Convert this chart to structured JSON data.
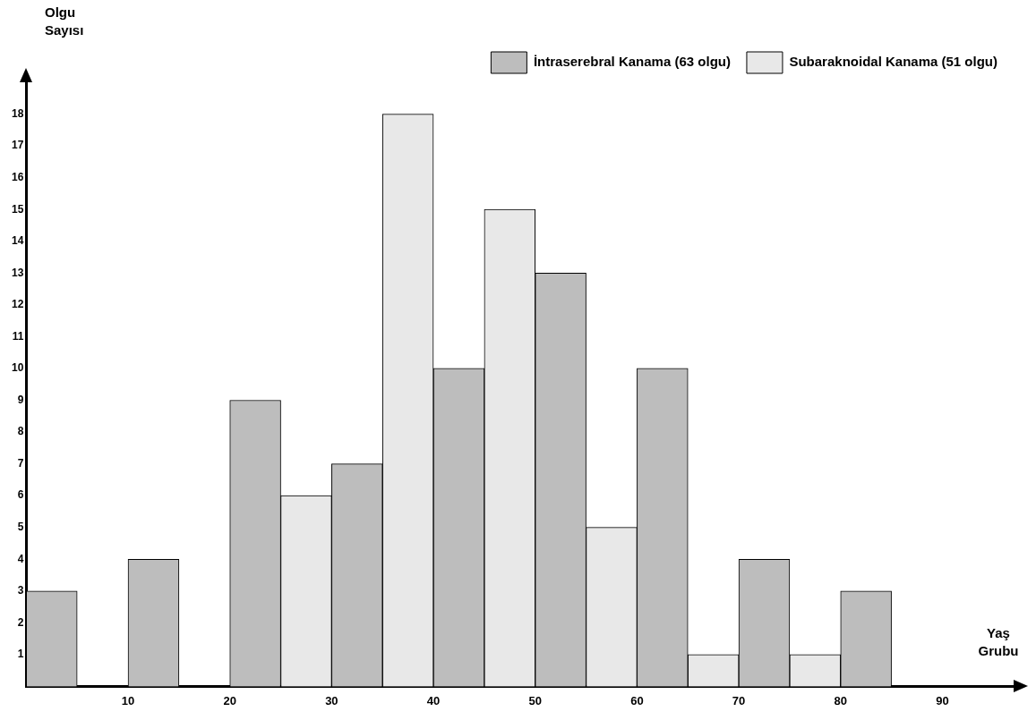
{
  "chart_data": {
    "type": "bar",
    "xlabel": "Yaş Grubu",
    "ylabel": "Olgu Sayısı",
    "grid": false,
    "legend": "top right",
    "xlim": [
      0,
      97
    ],
    "xticks": [
      10,
      20,
      30,
      40,
      50,
      60,
      70,
      80,
      90
    ],
    "ylim": [
      0,
      19
    ],
    "yticks": [
      1,
      2,
      3,
      4,
      5,
      6,
      7,
      8,
      9,
      10,
      11,
      12,
      13,
      14,
      15,
      16,
      17,
      18
    ],
    "series": [
      {
        "name": "İntraserebral Kanama (63 olgu)",
        "color": "#bdbdbd",
        "x": [
          2.5,
          12.5,
          22.5,
          32.5,
          42.5,
          52.5,
          62.5,
          72.5,
          82.5
        ],
        "values": [
          3,
          4,
          9,
          7,
          10,
          13,
          10,
          4,
          3
        ]
      },
      {
        "name": "Subaraknoidal Kanama (51 olgu)",
        "color": "#e8e8e8",
        "x": [
          27.5,
          37.5,
          47.5,
          57.5,
          67.5,
          77.5
        ],
        "values": [
          6,
          18,
          15,
          5,
          1,
          1
        ]
      }
    ]
  }
}
